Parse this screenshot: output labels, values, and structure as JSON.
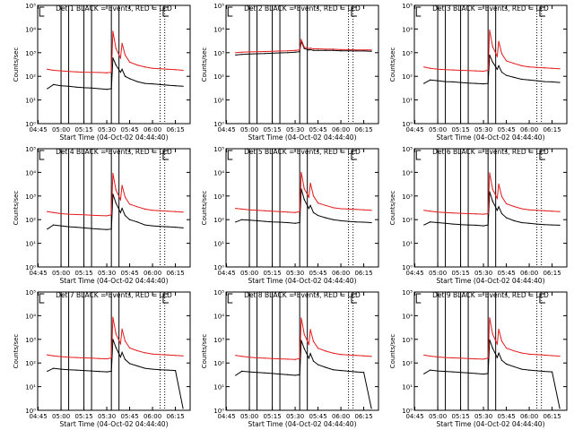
{
  "colors": {
    "events": "#000000",
    "lld": "#e41a1c",
    "axis": "#000000",
    "background": "#ffffff"
  },
  "chart_data": {
    "type": "line",
    "layout": "3x3 grid",
    "yscale": "log",
    "ylim": [
      1,
      100000
    ],
    "y_ticks": [
      "10⁰",
      "10¹",
      "10²",
      "10³",
      "10⁴",
      "10⁵"
    ],
    "ylabel": "Counts/sec",
    "xlabel": "Start Time (04-Oct-02 04:44:40)",
    "x_ticks": [
      "04:45",
      "05:00",
      "05:15",
      "05:30",
      "05:45",
      "06:00",
      "06:15"
    ],
    "xlim": [
      "04:44:40",
      "06:24:40"
    ],
    "vertical_markers": {
      "solid": [
        "05:00",
        "05:05",
        "05:15",
        "05:20",
        "05:33",
        "05:38"
      ],
      "dotted": [
        "06:05",
        "06:08"
      ],
      "bracket_left": "04:46",
      "bracket_right": "06:07"
    },
    "x_times": [
      "04:51",
      "04:55",
      "05:00",
      "05:05",
      "05:10",
      "05:15",
      "05:20",
      "05:25",
      "05:30",
      "05:33",
      "05:34",
      "05:36",
      "05:39",
      "05:40",
      "05:42",
      "05:45",
      "05:50",
      "05:55",
      "06:00",
      "06:05",
      "06:10",
      "06:15",
      "06:20"
    ],
    "panels": [
      {
        "title": "Det 1 BLACK = Events, RED = LLD",
        "series": [
          {
            "name": "BLACK = Events",
            "values": [
              30,
              45,
              40,
              38,
              35,
              33,
              32,
              30,
              28,
              30,
              600,
              300,
              150,
              200,
              100,
              80,
              60,
              50,
              48,
              45,
              42,
              40,
              38
            ]
          },
          {
            "name": "RED = LLD",
            "values": [
              200,
              180,
              170,
              160,
              155,
              150,
              148,
              145,
              140,
              150,
              8000,
              1500,
              600,
              2500,
              800,
              400,
              300,
              250,
              220,
              210,
              200,
              190,
              180
            ]
          }
        ]
      },
      {
        "title": "Det 2 BLACK = Events, RED = LLD",
        "series": [
          {
            "name": "BLACK = Events",
            "values": [
              800,
              850,
              880,
              900,
              920,
              950,
              980,
              1000,
              1050,
              1100,
              3000,
              1500,
              1300,
              1350,
              1250,
              1250,
              1250,
              1250,
              1200,
              1200,
              1180,
              1180,
              1150
            ]
          },
          {
            "name": "RED = LLD",
            "values": [
              1000,
              1050,
              1080,
              1100,
              1120,
              1150,
              1180,
              1200,
              1250,
              1300,
              3500,
              1700,
              1500,
              1550,
              1450,
              1450,
              1400,
              1400,
              1350,
              1350,
              1300,
              1300,
              1300
            ]
          }
        ]
      },
      {
        "title": "Det 3 BLACK = Events, RED = LLD",
        "series": [
          {
            "name": "BLACK = Events",
            "values": [
              50,
              70,
              65,
              60,
              58,
              55,
              52,
              50,
              48,
              50,
              800,
              400,
              200,
              280,
              150,
              110,
              90,
              75,
              70,
              65,
              60,
              58,
              55
            ]
          },
          {
            "name": "RED = LLD",
            "values": [
              250,
              220,
              200,
              190,
              185,
              180,
              175,
              170,
              165,
              180,
              9000,
              1800,
              700,
              3000,
              900,
              450,
              350,
              280,
              250,
              240,
              230,
              220,
              210
            ]
          }
        ]
      },
      {
        "title": "Det 4 BLACK = Events, RED = LLD",
        "series": [
          {
            "name": "BLACK = Events",
            "values": [
              40,
              60,
              55,
              50,
              48,
              45,
              42,
              40,
              38,
              40,
              1200,
              500,
              200,
              300,
              150,
              100,
              80,
              60,
              55,
              52,
              50,
              48,
              45
            ]
          },
          {
            "name": "RED = LLD",
            "values": [
              220,
              200,
              180,
              170,
              165,
              160,
              155,
              150,
              145,
              160,
              9000,
              1800,
              700,
              2800,
              900,
              450,
              350,
              280,
              250,
              240,
              230,
              220,
              210
            ]
          }
        ]
      },
      {
        "title": "Det 5 BLACK = Events, RED = LLD",
        "series": [
          {
            "name": "BLACK = Events",
            "values": [
              80,
              100,
              95,
              90,
              85,
              80,
              78,
              75,
              70,
              75,
              2000,
              700,
              300,
              400,
              200,
              150,
              120,
              100,
              90,
              85,
              80,
              78,
              75
            ]
          },
          {
            "name": "RED = LLD",
            "values": [
              300,
              280,
              260,
              250,
              240,
              230,
              220,
              210,
              200,
              220,
              10000,
              2000,
              900,
              3500,
              1000,
              500,
              400,
              320,
              290,
              280,
              270,
              260,
              250
            ]
          }
        ]
      },
      {
        "title": "Det 6 BLACK = Events, RED = LLD",
        "series": [
          {
            "name": "BLACK = Events",
            "values": [
              60,
              80,
              75,
              70,
              65,
              62,
              60,
              58,
              55,
              60,
              1500,
              600,
              250,
              350,
              180,
              120,
              90,
              75,
              70,
              65,
              62,
              60,
              58
            ]
          },
          {
            "name": "RED = LLD",
            "values": [
              250,
              230,
              210,
              200,
              190,
              185,
              180,
              175,
              170,
              180,
              9500,
              1900,
              800,
              3200,
              950,
              470,
              360,
              290,
              260,
              250,
              240,
              230,
              220
            ]
          }
        ]
      },
      {
        "title": "Det 7 BLACK = Events, RED = LLD",
        "series": [
          {
            "name": "BLACK = Events",
            "values": [
              45,
              60,
              55,
              52,
              50,
              48,
              46,
              44,
              42,
              45,
              1000,
              450,
              180,
              280,
              140,
              95,
              75,
              60,
              55,
              52,
              50,
              48,
              1.2
            ]
          },
          {
            "name": "RED = LLD",
            "values": [
              220,
              200,
              185,
              175,
              170,
              165,
              160,
              155,
              150,
              165,
              8500,
              1700,
              650,
              2700,
              850,
              430,
              330,
              270,
              240,
              230,
              220,
              210,
              200
            ]
          }
        ]
      },
      {
        "title": "Det 8 BLACK = Events, RED = LLD",
        "series": [
          {
            "name": "BLACK = Events",
            "values": [
              30,
              45,
              42,
              40,
              38,
              36,
              34,
              32,
              30,
              32,
              900,
              400,
              160,
              250,
              120,
              85,
              65,
              52,
              48,
              45,
              42,
              40,
              1.2
            ]
          },
          {
            "name": "RED = LLD",
            "values": [
              210,
              190,
              175,
              165,
              160,
              155,
              150,
              145,
              140,
              155,
              8000,
              1600,
              620,
              2600,
              820,
              420,
              320,
              260,
              230,
              220,
              210,
              200,
              190
            ]
          }
        ]
      },
      {
        "title": "Det 9 BLACK = Events, RED = LLD",
        "series": [
          {
            "name": "BLACK = Events",
            "values": [
              35,
              50,
              46,
              44,
              42,
              40,
              38,
              36,
              34,
              36,
              950,
              420,
              170,
              260,
              130,
              90,
              70,
              55,
              50,
              47,
              44,
              42,
              1.2
            ]
          },
          {
            "name": "RED = LLD",
            "values": [
              215,
              195,
              180,
              170,
              165,
              160,
              155,
              150,
              145,
              160,
              8200,
              1650,
              640,
              2650,
              830,
              425,
              325,
              265,
              235,
              225,
              215,
              205,
              195
            ]
          }
        ]
      }
    ]
  }
}
